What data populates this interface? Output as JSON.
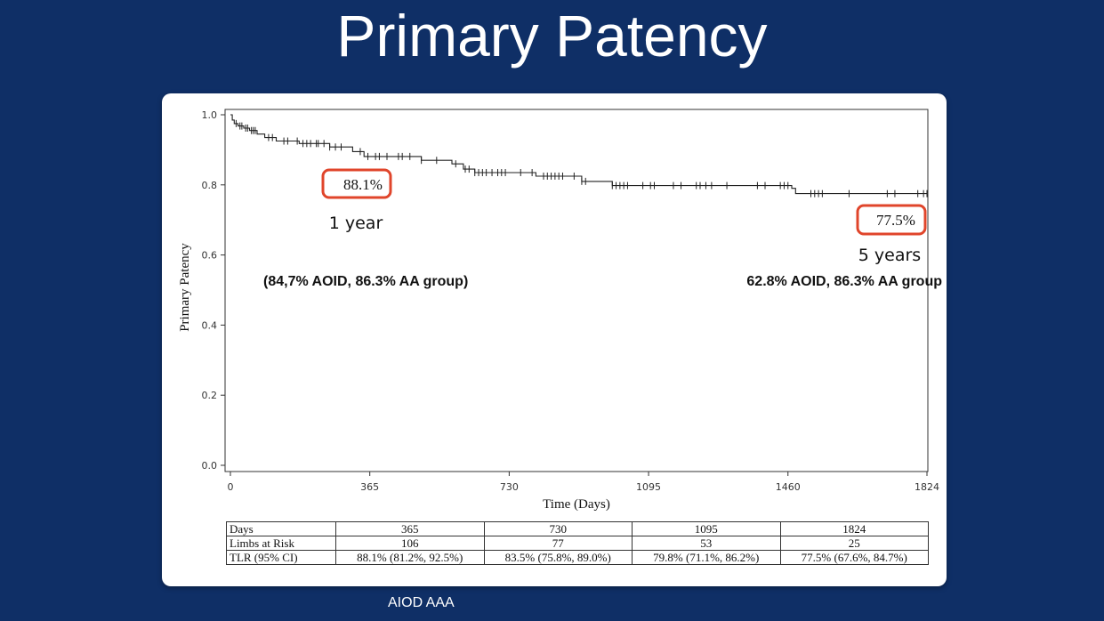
{
  "slide_title": "Primary Patency",
  "footer_note": "AIOD  AAA",
  "chart_data": {
    "type": "line",
    "subtype": "kaplan-meier",
    "ylabel": "Primary Patency",
    "xlabel": "Time (Days)",
    "xlim": [
      0,
      1824
    ],
    "ylim": [
      0.0,
      1.0
    ],
    "xticks": [
      0,
      365,
      730,
      1095,
      1460,
      1824
    ],
    "yticks": [
      0.0,
      0.2,
      0.4,
      0.6,
      0.8,
      1.0
    ],
    "ytick_labels": [
      "0.0",
      "0.2",
      "0.4",
      "0.6",
      "0.8",
      "1.0"
    ],
    "series": [
      {
        "name": "Primary Patency",
        "color": "#222222",
        "steps": [
          [
            0,
            1.0
          ],
          [
            5,
            0.985
          ],
          [
            10,
            0.975
          ],
          [
            20,
            0.968
          ],
          [
            35,
            0.962
          ],
          [
            50,
            0.955
          ],
          [
            70,
            0.945
          ],
          [
            90,
            0.935
          ],
          [
            120,
            0.925
          ],
          [
            180,
            0.918
          ],
          [
            260,
            0.908
          ],
          [
            320,
            0.895
          ],
          [
            350,
            0.881
          ],
          [
            500,
            0.87
          ],
          [
            580,
            0.86
          ],
          [
            610,
            0.845
          ],
          [
            640,
            0.835
          ],
          [
            800,
            0.825
          ],
          [
            920,
            0.81
          ],
          [
            1000,
            0.798
          ],
          [
            1470,
            0.79
          ],
          [
            1480,
            0.775
          ],
          [
            1824,
            0.775
          ]
        ],
        "censor_times": [
          15,
          25,
          30,
          40,
          45,
          55,
          60,
          65,
          100,
          110,
          140,
          150,
          175,
          190,
          200,
          210,
          225,
          230,
          245,
          260,
          275,
          290,
          340,
          360,
          380,
          390,
          410,
          440,
          450,
          470,
          500,
          540,
          590,
          615,
          625,
          640,
          650,
          660,
          670,
          685,
          700,
          710,
          720,
          760,
          790,
          820,
          830,
          840,
          850,
          860,
          870,
          900,
          920,
          930,
          1000,
          1010,
          1020,
          1030,
          1040,
          1080,
          1100,
          1110,
          1160,
          1180,
          1220,
          1230,
          1245,
          1260,
          1300,
          1380,
          1400,
          1440,
          1450,
          1460,
          1520,
          1530,
          1540,
          1550,
          1620,
          1720,
          1740,
          1800,
          1815,
          1824
        ]
      }
    ],
    "annotations": [
      {
        "label": "88.1%",
        "sublabel": "1 year",
        "x": 365,
        "y": 0.881,
        "note": "(84,7% AOID, 86.3% AA group)"
      },
      {
        "label": "77.5%",
        "sublabel": "5 years",
        "x": 1824,
        "y": 0.775,
        "note": "62.8%  AOID, 86.3% AA group"
      }
    ],
    "risk_table": {
      "header": [
        "Days",
        "365",
        "730",
        "1095",
        "1824"
      ],
      "rows": [
        [
          "Limbs at Risk",
          "106",
          "77",
          "53",
          "25"
        ],
        [
          "TLR (95% CI)",
          "88.1% (81.2%, 92.5%)",
          "83.5% (75.8%, 89.0%)",
          "79.8% (71.1%, 86.2%)",
          "77.5% (67.6%, 84.7%)"
        ]
      ]
    }
  }
}
